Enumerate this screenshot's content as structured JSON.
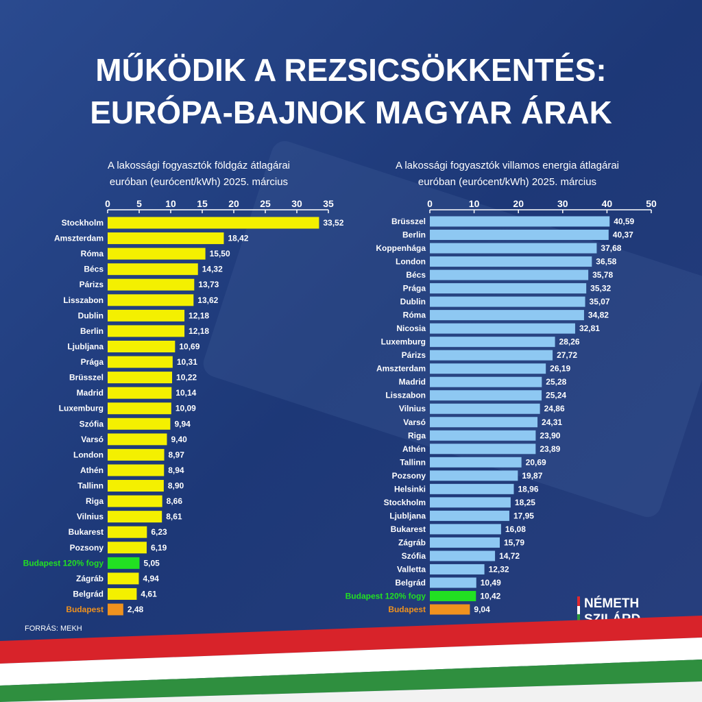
{
  "title": [
    "MŰKÖDIK A REZSICSÖKKENTÉS:",
    "EURÓPA-BAJNOK MAGYAR ÁRAK"
  ],
  "source": "FORRÁS: MEKH",
  "brand": [
    "NÉMETH",
    "SZILÁRD"
  ],
  "chart_data": [
    {
      "type": "hbar",
      "subtitle": [
        "A lakossági fogyasztók földgáz átlagárai",
        "euróban (eurócent/kWh) 2025. március"
      ],
      "categories": [
        "Stockholm",
        "Amszterdam",
        "Róma",
        "Bécs",
        "Párizs",
        "Lisszabon",
        "Dublin",
        "Berlin",
        "Ljubljana",
        "Prága",
        "Brüsszel",
        "Madrid",
        "Luxemburg",
        "Szófia",
        "Varsó",
        "London",
        "Athén",
        "Tallinn",
        "Riga",
        "Vilnius",
        "Bukarest",
        "Pozsony",
        "Budapest 120% fogy",
        "Zágráb",
        "Belgrád",
        "Budapest"
      ],
      "values": [
        33.52,
        18.42,
        15.5,
        14.32,
        13.73,
        13.62,
        12.18,
        12.18,
        10.69,
        10.31,
        10.22,
        10.14,
        10.09,
        9.94,
        9.4,
        8.97,
        8.94,
        8.9,
        8.66,
        8.61,
        6.23,
        6.19,
        5.05,
        4.94,
        4.61,
        2.48
      ],
      "value_labels": [
        "33,52",
        "18,42",
        "15,50",
        "14,32",
        "13,73",
        "13,62",
        "12,18",
        "12,18",
        "10,69",
        "10,31",
        "10,22",
        "10,14",
        "10,09",
        "9,94",
        "9,40",
        "8,97",
        "8,94",
        "8,90",
        "8,66",
        "8,61",
        "6,23",
        "6,19",
        "5,05",
        "4,94",
        "4,61",
        "2,48"
      ],
      "color": "#f4f000",
      "colors": [
        "#f4f000",
        "#f4f000",
        "#f4f000",
        "#f4f000",
        "#f4f000",
        "#f4f000",
        "#f4f000",
        "#f4f000",
        "#f4f000",
        "#f4f000",
        "#f4f000",
        "#f4f000",
        "#f4f000",
        "#f4f000",
        "#f4f000",
        "#f4f000",
        "#f4f000",
        "#f4f000",
        "#f4f000",
        "#f4f000",
        "#f4f000",
        "#f4f000",
        "#22e022",
        "#f4f000",
        "#f4f000",
        "#f0921e"
      ],
      "xlim": [
        0,
        35
      ],
      "xticks": [
        0,
        5,
        10,
        15,
        20,
        25,
        30,
        35
      ]
    },
    {
      "type": "hbar",
      "subtitle": [
        "A lakossági fogyasztók villamos energia átlagárai",
        "euróban (eurócent/kWh) 2025. március"
      ],
      "categories": [
        "Brüsszel",
        "Berlin",
        "Koppenhága",
        "London",
        "Bécs",
        "Prága",
        "Dublin",
        "Róma",
        "Nicosia",
        "Luxemburg",
        "Párizs",
        "Amszterdam",
        "Madrid",
        "Lisszabon",
        "Vilnius",
        "Varsó",
        "Riga",
        "Athén",
        "Tallinn",
        "Pozsony",
        "Helsinki",
        "Stockholm",
        "Ljubljana",
        "Bukarest",
        "Zágráb",
        "Szófia",
        "Valletta",
        "Belgrád",
        "Budapest 120% fogy",
        "Budapest"
      ],
      "values": [
        40.59,
        40.37,
        37.68,
        36.58,
        35.78,
        35.32,
        35.07,
        34.82,
        32.81,
        28.26,
        27.72,
        26.19,
        25.28,
        25.24,
        24.86,
        24.31,
        23.9,
        23.89,
        20.69,
        19.87,
        18.96,
        18.25,
        17.95,
        16.08,
        15.79,
        14.72,
        12.32,
        10.49,
        10.42,
        9.04
      ],
      "value_labels": [
        "40,59",
        "40,37",
        "37,68",
        "36,58",
        "35,78",
        "35,32",
        "35,07",
        "34,82",
        "32,81",
        "28,26",
        "27,72",
        "26,19",
        "25,28",
        "25,24",
        "24,86",
        "24,31",
        "23,90",
        "23,89",
        "20,69",
        "19,87",
        "18,96",
        "18,25",
        "17,95",
        "16,08",
        "15,79",
        "14,72",
        "12,32",
        "10,49",
        "10,42",
        "9,04"
      ],
      "color": "#8ec8f2",
      "colors": [
        "#8ec8f2",
        "#8ec8f2",
        "#8ec8f2",
        "#8ec8f2",
        "#8ec8f2",
        "#8ec8f2",
        "#8ec8f2",
        "#8ec8f2",
        "#8ec8f2",
        "#8ec8f2",
        "#8ec8f2",
        "#8ec8f2",
        "#8ec8f2",
        "#8ec8f2",
        "#8ec8f2",
        "#8ec8f2",
        "#8ec8f2",
        "#8ec8f2",
        "#8ec8f2",
        "#8ec8f2",
        "#8ec8f2",
        "#8ec8f2",
        "#8ec8f2",
        "#8ec8f2",
        "#8ec8f2",
        "#8ec8f2",
        "#8ec8f2",
        "#8ec8f2",
        "#22e022",
        "#f0921e"
      ],
      "xlim": [
        0,
        50
      ],
      "xticks": [
        0,
        10,
        20,
        30,
        40,
        50
      ]
    }
  ]
}
